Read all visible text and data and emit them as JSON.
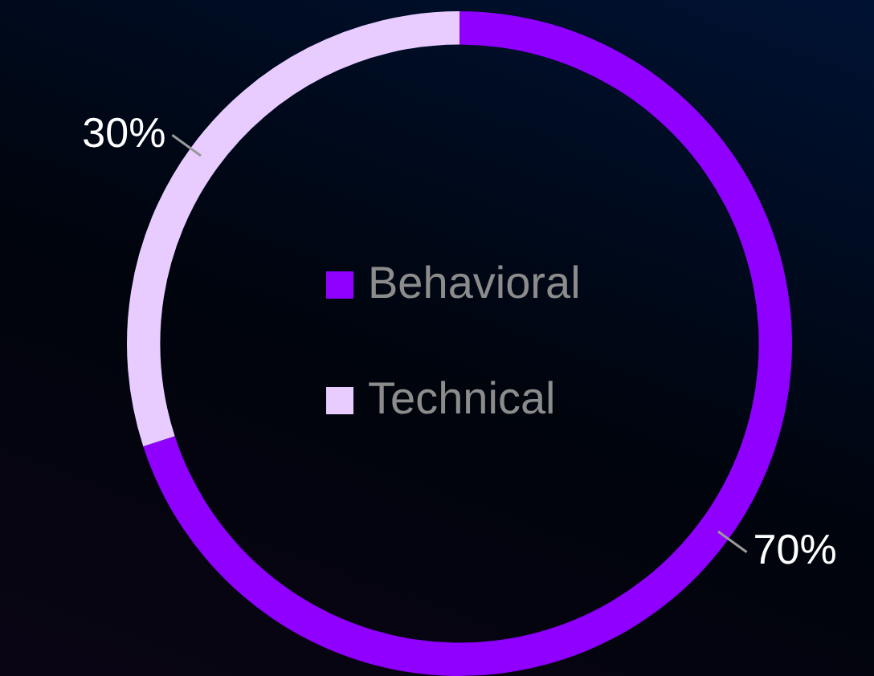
{
  "chart_data": {
    "type": "donut",
    "categories": [
      "Behavioral",
      "Technical"
    ],
    "values": [
      70,
      30
    ],
    "colors": [
      "#8f00ff",
      "#e8ccff"
    ],
    "legend": "center",
    "value_labels": [
      "70%",
      "30%"
    ]
  }
}
